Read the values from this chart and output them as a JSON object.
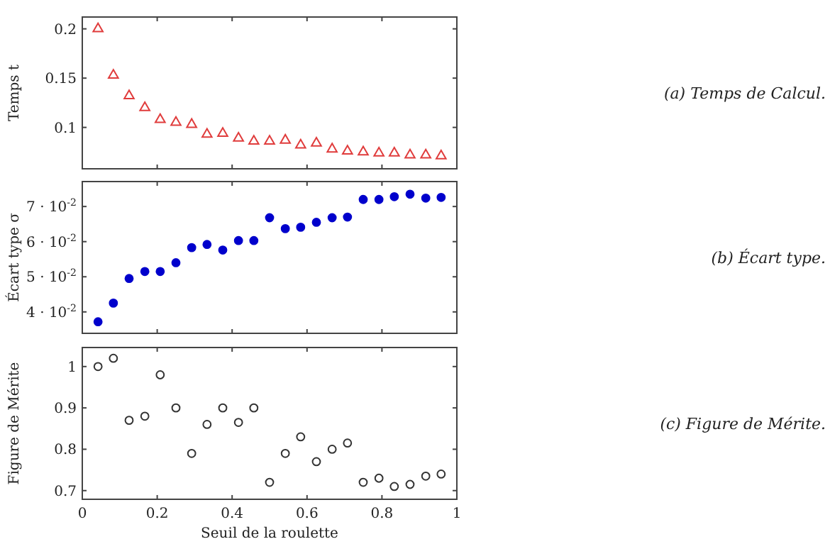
{
  "chart_data": [
    {
      "type": "scatter",
      "annotations": [
        "(a) Temps de Calcul."
      ],
      "ylabel": "Temps t",
      "marker": "triangle",
      "grid": false,
      "tick_labels": "y",
      "xlim": [
        0,
        1
      ],
      "xticks": [
        0,
        0.2,
        0.4,
        0.6,
        0.8,
        1
      ],
      "ylim": [
        0.058,
        0.212
      ],
      "yticks": [
        0.1,
        0.15,
        0.2
      ],
      "x": [
        0.042,
        0.083,
        0.125,
        0.167,
        0.208,
        0.25,
        0.292,
        0.333,
        0.375,
        0.417,
        0.458,
        0.5,
        0.542,
        0.583,
        0.625,
        0.667,
        0.708,
        0.75,
        0.792,
        0.833,
        0.875,
        0.917,
        0.958
      ],
      "series": [
        {
          "color": "#e03c3c",
          "values": [
            0.2,
            0.153,
            0.132,
            0.12,
            0.108,
            0.105,
            0.103,
            0.093,
            0.094,
            0.089,
            0.086,
            0.086,
            0.087,
            0.082,
            0.084,
            0.078,
            0.076,
            0.075,
            0.074,
            0.074,
            0.072,
            0.072,
            0.071
          ]
        }
      ]
    },
    {
      "type": "scatter",
      "annotations": [
        "(b) Écart type."
      ],
      "ylabel": "Écart type σ",
      "marker": "circle",
      "grid": false,
      "tick_labels": "y",
      "xlim": [
        0,
        1
      ],
      "xticks": [
        0,
        0.2,
        0.4,
        0.6,
        0.8,
        1
      ],
      "ylim": [
        0.0339,
        0.0771
      ],
      "yticks": [
        {
          "value": 0.04,
          "label": "4 · 10$^{-2}$"
        },
        {
          "value": 0.05,
          "label": "5 · 10$^{-2}$"
        },
        {
          "value": 0.06,
          "label": "6 · 10$^{-2}$"
        },
        {
          "value": 0.07,
          "label": "7 · 10$^{-2}$"
        }
      ],
      "x": [
        0.042,
        0.083,
        0.125,
        0.167,
        0.208,
        0.25,
        0.292,
        0.333,
        0.375,
        0.417,
        0.458,
        0.5,
        0.542,
        0.583,
        0.625,
        0.667,
        0.708,
        0.75,
        0.792,
        0.833,
        0.875,
        0.917,
        0.958
      ],
      "series": [
        {
          "color": "#0000cc",
          "values": [
            0.0372,
            0.0425,
            0.0495,
            0.0515,
            0.0515,
            0.054,
            0.0583,
            0.0592,
            0.0576,
            0.0603,
            0.0603,
            0.0668,
            0.0637,
            0.0641,
            0.0655,
            0.0668,
            0.067,
            0.072,
            0.072,
            0.0728,
            0.0735,
            0.0724,
            0.0726
          ]
        }
      ]
    },
    {
      "type": "scatter",
      "annotations": [
        "(c) Figure de Mérite."
      ],
      "ylabel": "Figure de Mérite",
      "xlabel": "Seuil de la roulette",
      "marker": "circle",
      "grid": false,
      "xlim": [
        0,
        1
      ],
      "xticks": [
        0,
        0.2,
        0.4,
        0.6,
        0.8,
        1
      ],
      "ylim": [
        0.679,
        1.046
      ],
      "yticks": [
        0.7,
        0.8,
        0.9,
        1
      ],
      "x": [
        0.042,
        0.083,
        0.125,
        0.167,
        0.208,
        0.25,
        0.292,
        0.333,
        0.375,
        0.417,
        0.458,
        0.5,
        0.542,
        0.583,
        0.625,
        0.667,
        0.708,
        0.75,
        0.792,
        0.833,
        0.875,
        0.917,
        0.958
      ],
      "series": [
        {
          "color": "#333333",
          "values": [
            1.0,
            1.02,
            0.87,
            0.88,
            0.98,
            0.9,
            0.79,
            0.86,
            0.9,
            0.865,
            0.9,
            0.72,
            0.79,
            0.83,
            0.77,
            0.8,
            0.815,
            0.72,
            0.73,
            0.71,
            0.715,
            0.735,
            0.74
          ]
        }
      ]
    }
  ]
}
